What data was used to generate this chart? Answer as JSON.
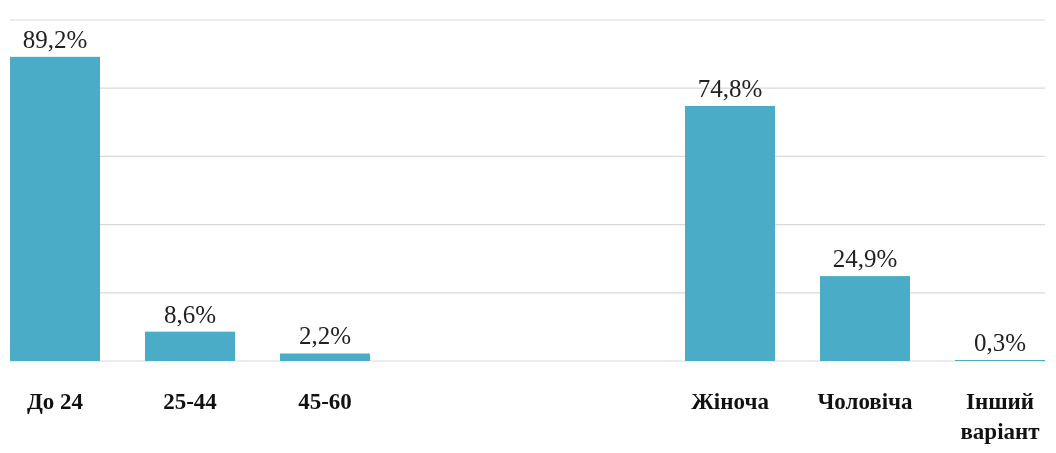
{
  "chart_data": {
    "type": "bar",
    "categories": [
      "До 24",
      "25-44",
      "45-60",
      null,
      null,
      "Жіноча",
      "Чоловіча",
      "Інший варіант"
    ],
    "values": [
      89.2,
      8.6,
      2.2,
      null,
      null,
      74.8,
      24.9,
      0.3
    ],
    "value_labels": [
      "89,2%",
      "8,6%",
      "2,2%",
      null,
      null,
      "74,8%",
      "24,9%",
      "0,3%"
    ],
    "color": "#4aacc6",
    "ylim": [
      0,
      100
    ],
    "yticks": [
      {
        "value": 0,
        "label": null
      },
      {
        "value": 20,
        "label": null
      },
      {
        "value": 40,
        "label": null
      },
      {
        "value": 60,
        "label": null
      },
      {
        "value": 80,
        "label": null
      },
      {
        "value": 100,
        "label": null
      }
    ],
    "grid": "y"
  }
}
